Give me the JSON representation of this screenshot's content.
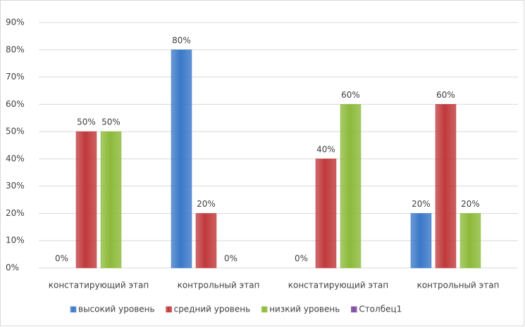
{
  "chart_data": {
    "type": "bar",
    "categories": [
      "констатирующий этап",
      "контрольный этап",
      "констатирующий этап",
      "контрольный этап"
    ],
    "series": [
      {
        "name": "высокий уровень",
        "color": "#3a78c8",
        "values": [
          0,
          80,
          0,
          20
        ],
        "value_labels": [
          "0%",
          "80%",
          "0%",
          "20%"
        ]
      },
      {
        "name": "средний уровень",
        "color": "#c0393b",
        "values": [
          50,
          20,
          40,
          60
        ],
        "value_labels": [
          "50%",
          "20%",
          "40%",
          "60%"
        ]
      },
      {
        "name": "низкий уровень",
        "color": "#8cba3a",
        "values": [
          50,
          0,
          60,
          20
        ],
        "value_labels": [
          "50%",
          "0%",
          "60%",
          "20%"
        ]
      },
      {
        "name": "Столбец1",
        "color": "#7a4aa0",
        "values": [
          null,
          null,
          null,
          null
        ]
      }
    ],
    "ylim": [
      0,
      90
    ],
    "yticks": [
      {
        "value": 0,
        "label": "0%"
      },
      {
        "value": 10,
        "label": "10%"
      },
      {
        "value": 20,
        "label": "20%"
      },
      {
        "value": 30,
        "label": "30%"
      },
      {
        "value": 40,
        "label": "40%"
      },
      {
        "value": 50,
        "label": "50%"
      },
      {
        "value": 60,
        "label": "60%"
      },
      {
        "value": 70,
        "label": "70%"
      },
      {
        "value": 80,
        "label": "80%"
      },
      {
        "value": 90,
        "label": "90%"
      }
    ],
    "grid": true,
    "legend": "bottom"
  }
}
